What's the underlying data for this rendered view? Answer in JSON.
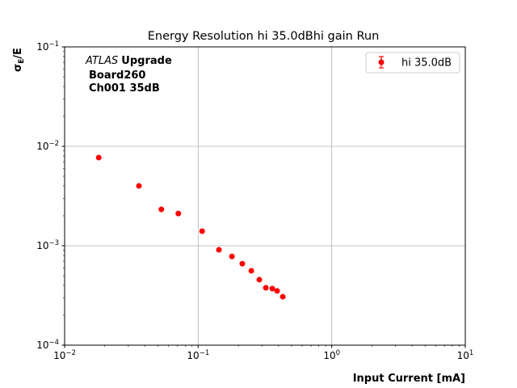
{
  "chart_data": {
    "type": "scatter",
    "title": "Energy Resolution hi 35.0dBhi gain Run",
    "xlabel": "Input Current [mA]",
    "ylabel_main": "σ",
    "ylabel_sub": "E",
    "ylabel_tail": "/E",
    "xscale": "log",
    "yscale": "log",
    "xlim": [
      0.01,
      10
    ],
    "ylim": [
      0.0001,
      0.1
    ],
    "grid": true,
    "legend_placement": "top-right",
    "x_ticks": [
      {
        "base": "10",
        "exp": "−2",
        "value": 0.01
      },
      {
        "base": "10",
        "exp": "−1",
        "value": 0.1
      },
      {
        "base": "10",
        "exp": "0",
        "value": 1
      },
      {
        "base": "10",
        "exp": "1",
        "value": 10
      }
    ],
    "y_ticks": [
      {
        "base": "10",
        "exp": "−4",
        "value": 0.0001
      },
      {
        "base": "10",
        "exp": "−3",
        "value": 0.001
      },
      {
        "base": "10",
        "exp": "−2",
        "value": 0.01
      },
      {
        "base": "10",
        "exp": "−1",
        "value": 0.1
      }
    ],
    "annotation": {
      "italic": "ATLAS",
      "bold": "Upgrade",
      "line2": "Board260",
      "line3": "Ch001 35dB"
    },
    "series": [
      {
        "name": "hi 35.0dB",
        "color": "#ff0000",
        "marker": "circle with error bars",
        "x": [
          0.018,
          0.036,
          0.053,
          0.071,
          0.107,
          0.143,
          0.179,
          0.214,
          0.25,
          0.287,
          0.321,
          0.359,
          0.39,
          0.43
        ],
        "y": [
          0.0077,
          0.004,
          0.00232,
          0.00211,
          0.0014,
          0.00091,
          0.00078,
          0.00066,
          0.00056,
          0.000456,
          0.000378,
          0.000371,
          0.000351,
          0.000307
        ]
      }
    ]
  }
}
